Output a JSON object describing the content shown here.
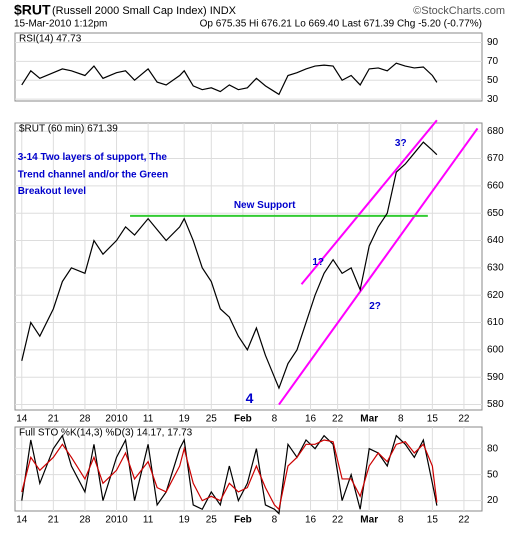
{
  "header": {
    "symbol": "$RUT",
    "name": "(Russell 2000 Small Cap Index) INDX",
    "date": "15-Mar-2010 1:12pm",
    "quote": "Op 675.35 Hi 676.21 Lo 669.40 Last 671.39 Chg -5.20 (-0.77%)",
    "brand": "©StockCharts.com"
  },
  "chart_data": [
    {
      "type": "line",
      "title": "RSI(14) 47.73",
      "xlim": [
        -1.5,
        102
      ],
      "ylim": [
        28,
        100
      ],
      "yticks": [
        30,
        50,
        70,
        90
      ],
      "grid": true,
      "x": [
        0,
        2,
        4,
        7,
        9,
        11,
        14,
        16,
        18,
        21,
        23,
        25,
        28,
        30,
        32,
        35,
        36,
        38,
        40,
        42,
        44,
        46,
        48,
        50,
        52,
        54,
        56,
        57,
        59,
        61,
        63,
        65,
        67,
        69,
        71,
        73,
        75,
        77,
        79,
        81,
        83,
        85,
        87,
        89,
        91,
        92
      ],
      "series": [
        {
          "name": "RSI(14)",
          "color": "#000000",
          "values": [
            45,
            60,
            52,
            58,
            62,
            60,
            55,
            65,
            52,
            58,
            60,
            50,
            62,
            48,
            45,
            55,
            60,
            44,
            40,
            42,
            38,
            45,
            40,
            42,
            52,
            44,
            38,
            35,
            55,
            58,
            62,
            65,
            66,
            65,
            50,
            55,
            45,
            62,
            63,
            60,
            68,
            65,
            63,
            64,
            55,
            47.73
          ]
        }
      ]
    },
    {
      "type": "line",
      "title": "$RUT (60 min) 671.39",
      "xlim": [
        -1.5,
        102
      ],
      "ylim": [
        578,
        683
      ],
      "yticks": [
        580,
        590,
        600,
        610,
        620,
        630,
        640,
        650,
        660,
        670,
        680
      ],
      "grid": true,
      "xticks": [
        {
          "value": 0,
          "label": "14"
        },
        {
          "value": 7,
          "label": "21"
        },
        {
          "value": 14,
          "label": "28"
        },
        {
          "value": 21,
          "label": "2010"
        },
        {
          "value": 28,
          "label": "11"
        },
        {
          "value": 36,
          "label": "19"
        },
        {
          "value": 42,
          "label": "25"
        },
        {
          "value": 49,
          "label": "Feb"
        },
        {
          "value": 56,
          "label": "8"
        },
        {
          "value": 64,
          "label": "16"
        },
        {
          "value": 70,
          "label": "22"
        },
        {
          "value": 77,
          "label": "Mar"
        },
        {
          "value": 84,
          "label": "8"
        },
        {
          "value": 91,
          "label": "15"
        },
        {
          "value": 98,
          "label": "22"
        }
      ],
      "x": [
        0,
        2,
        4,
        7,
        9,
        11,
        14,
        16,
        18,
        21,
        23,
        25,
        28,
        30,
        32,
        35,
        36,
        38,
        40,
        42,
        44,
        46,
        48,
        50,
        52,
        54,
        56,
        57,
        59,
        61,
        63,
        65,
        67,
        69,
        71,
        73,
        75,
        77,
        79,
        81,
        83,
        85,
        87,
        89,
        91,
        92
      ],
      "series": [
        {
          "name": "$RUT",
          "color": "#000000",
          "values": [
            596,
            610,
            605,
            615,
            625,
            630,
            628,
            640,
            635,
            640,
            645,
            642,
            648,
            644,
            640,
            645,
            648,
            640,
            630,
            625,
            615,
            612,
            605,
            600,
            608,
            598,
            590,
            586,
            595,
            600,
            610,
            620,
            628,
            633,
            628,
            630,
            622,
            638,
            645,
            650,
            665,
            668,
            672,
            676,
            673,
            671.39
          ]
        }
      ],
      "lines": [
        {
          "color": "#ff00ff",
          "x": [
            57,
            101
          ],
          "y": [
            580,
            681
          ]
        },
        {
          "color": "#ff00ff",
          "x": [
            62,
            92
          ],
          "y": [
            624,
            684
          ]
        },
        {
          "color": "#33cc33",
          "x": [
            24,
            90
          ],
          "y": [
            649,
            649
          ]
        }
      ],
      "annotations": [
        {
          "text": "3-14 Two layers of support, The",
          "x": -0.9,
          "y": 670.5,
          "color": "#0000cc"
        },
        {
          "text": "Trend channel and/or the Green",
          "x": -0.9,
          "y": 664,
          "color": "#0000cc"
        },
        {
          "text": "Breakout level",
          "x": -0.9,
          "y": 658,
          "color": "#0000cc"
        },
        {
          "text": "New Support",
          "x": 47,
          "y": 652.8,
          "color": "#0000cc"
        },
        {
          "text": "1?",
          "x": 64.4,
          "y": 632,
          "color": "#0000cc"
        },
        {
          "text": "2?",
          "x": 77,
          "y": 616,
          "color": "#0000cc"
        },
        {
          "text": "3?",
          "x": 82.7,
          "y": 675.5,
          "color": "#0000cc"
        },
        {
          "text": "4",
          "x": 49.6,
          "y": 582,
          "color": "#0000cc"
        }
      ]
    },
    {
      "type": "line",
      "title": "Full STO %K(14,3) %D(3) 14.17, 17.73",
      "xlim": [
        -1.5,
        102
      ],
      "ylim": [
        8,
        105
      ],
      "yticks": [
        20,
        50,
        80
      ],
      "grid": true,
      "xticks": [
        {
          "value": 0,
          "label": "14"
        },
        {
          "value": 7,
          "label": "21"
        },
        {
          "value": 14,
          "label": "28"
        },
        {
          "value": 21,
          "label": "2010"
        },
        {
          "value": 28,
          "label": "11"
        },
        {
          "value": 36,
          "label": "19"
        },
        {
          "value": 42,
          "label": "25"
        },
        {
          "value": 49,
          "label": "Feb"
        },
        {
          "value": 56,
          "label": "8"
        },
        {
          "value": 64,
          "label": "16"
        },
        {
          "value": 70,
          "label": "22"
        },
        {
          "value": 77,
          "label": "Mar"
        },
        {
          "value": 84,
          "label": "8"
        },
        {
          "value": 91,
          "label": "15"
        },
        {
          "value": 98,
          "label": "22"
        }
      ],
      "x": [
        0,
        2,
        4,
        7,
        9,
        11,
        14,
        16,
        18,
        21,
        23,
        25,
        28,
        30,
        32,
        35,
        36,
        38,
        40,
        42,
        44,
        46,
        48,
        50,
        52,
        54,
        56,
        57,
        59,
        61,
        63,
        65,
        67,
        69,
        71,
        73,
        75,
        77,
        79,
        81,
        83,
        85,
        87,
        89,
        91,
        92
      ],
      "series": [
        {
          "name": "%K(14,3)",
          "color": "#000000",
          "values": [
            20,
            90,
            40,
            80,
            95,
            60,
            30,
            85,
            20,
            70,
            90,
            20,
            85,
            15,
            30,
            80,
            90,
            15,
            10,
            30,
            15,
            60,
            20,
            40,
            80,
            15,
            10,
            5,
            85,
            70,
            90,
            80,
            95,
            85,
            20,
            50,
            10,
            80,
            75,
            60,
            95,
            85,
            70,
            90,
            40,
            14.17
          ]
        },
        {
          "name": "%D(3)",
          "color": "#cc0000",
          "values": [
            30,
            70,
            55,
            70,
            85,
            70,
            45,
            70,
            40,
            55,
            75,
            45,
            65,
            35,
            30,
            60,
            80,
            40,
            20,
            25,
            20,
            40,
            30,
            35,
            60,
            35,
            15,
            10,
            60,
            70,
            85,
            85,
            90,
            88,
            45,
            45,
            25,
            60,
            75,
            65,
            85,
            88,
            75,
            85,
            60,
            17.73
          ]
        }
      ]
    }
  ]
}
